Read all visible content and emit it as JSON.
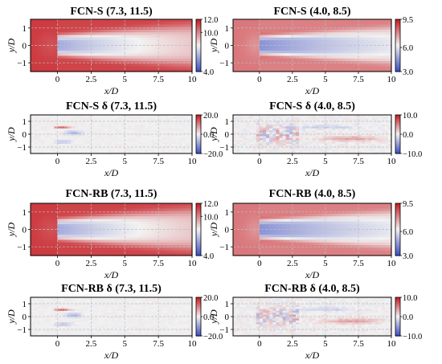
{
  "figure": {
    "colormap": "coolwarm",
    "colors": {
      "blue": "#3b4cc0",
      "white": "#f2f2f2",
      "red": "#c5181f"
    },
    "grid": true
  },
  "chart_data": [
    {
      "type": "heatmap",
      "title": "FCN-S (7.3, 11.5)",
      "field": "wake",
      "case": "A",
      "xlabel": "x/D",
      "ylabel": "y/D",
      "xlim": [
        -2,
        10
      ],
      "ylim": [
        -1.5,
        1.5
      ],
      "xticks": [
        "0",
        "2.5",
        "5",
        "7.5",
        "10"
      ],
      "yticks": [
        "1",
        "0",
        "−1"
      ],
      "colorbar": {
        "min": 4.0,
        "max": 12.0,
        "ticks": [
          "12.0",
          "10.0",
          "4.0"
        ]
      }
    },
    {
      "type": "heatmap",
      "title": "FCN-S (4.0, 8.5)",
      "field": "wake",
      "case": "B",
      "xlabel": "x/D",
      "ylabel": "y/D",
      "xlim": [
        -2,
        10
      ],
      "ylim": [
        -1.5,
        1.5
      ],
      "xticks": [
        "0",
        "2.5",
        "5",
        "7.5",
        "10"
      ],
      "yticks": [
        "1",
        "0",
        "−1"
      ],
      "colorbar": {
        "min": 3.0,
        "max": 9.5,
        "ticks": [
          "9.5",
          "6.0",
          "3.0"
        ]
      }
    },
    {
      "type": "heatmap",
      "title": "FCN-S δ (7.3, 11.5)",
      "field": "error",
      "case": "A",
      "xlabel": "x/D",
      "ylabel": "y/D",
      "xlim": [
        -2,
        10
      ],
      "ylim": [
        -1.5,
        1.5
      ],
      "xticks": [
        "0",
        "2.5",
        "5",
        "7.5",
        "10"
      ],
      "yticks": [
        "1",
        "0",
        "−1"
      ],
      "colorbar": {
        "min": -20.0,
        "max": 20.0,
        "ticks": [
          "20.0",
          "0.0",
          "−20.0"
        ]
      }
    },
    {
      "type": "heatmap",
      "title": "FCN-S δ (4.0, 8.5)",
      "field": "error",
      "case": "B",
      "xlabel": "x/D",
      "ylabel": "y/D",
      "xlim": [
        -2,
        10
      ],
      "ylim": [
        -1.5,
        1.5
      ],
      "xticks": [
        "0",
        "2.5",
        "5",
        "7.5",
        "10"
      ],
      "yticks": [
        "1",
        "0",
        "−1"
      ],
      "colorbar": {
        "min": -10.0,
        "max": 10.0,
        "ticks": [
          "10.0",
          "0.0",
          "−10.0"
        ]
      }
    },
    {
      "type": "heatmap",
      "title": "FCN-RB (7.3, 11.5)",
      "field": "wake",
      "case": "A",
      "xlabel": "x/D",
      "ylabel": "y/D",
      "xlim": [
        -2,
        10
      ],
      "ylim": [
        -1.5,
        1.5
      ],
      "xticks": [
        "0",
        "2.5",
        "5",
        "7.5",
        "10"
      ],
      "yticks": [
        "1",
        "0",
        "−1"
      ],
      "colorbar": {
        "min": 4.0,
        "max": 12.0,
        "ticks": [
          "12.0",
          "10.0",
          "4.0"
        ]
      }
    },
    {
      "type": "heatmap",
      "title": "FCN-RB (4.0, 8.5)",
      "field": "wake",
      "case": "B",
      "xlabel": "x/D",
      "ylabel": "y/D",
      "xlim": [
        -2,
        10
      ],
      "ylim": [
        -1.5,
        1.5
      ],
      "xticks": [
        "0",
        "2.5",
        "5",
        "7.5",
        "10"
      ],
      "yticks": [
        "1",
        "0",
        "−1"
      ],
      "colorbar": {
        "min": 3.0,
        "max": 9.5,
        "ticks": [
          "9.5",
          "6.0",
          "3.0"
        ]
      }
    },
    {
      "type": "heatmap",
      "title": "FCN-RB δ (7.3, 11.5)",
      "field": "error",
      "case": "A",
      "xlabel": "x/D",
      "ylabel": "y/D",
      "xlim": [
        -2,
        10
      ],
      "ylim": [
        -1.5,
        1.5
      ],
      "xticks": [
        "0",
        "2.5",
        "5",
        "7.5",
        "10"
      ],
      "yticks": [
        "1",
        "0",
        "−1"
      ],
      "colorbar": {
        "min": -20.0,
        "max": 20.0,
        "ticks": [
          "20.0",
          "0.0",
          "−20.0"
        ]
      }
    },
    {
      "type": "heatmap",
      "title": "FCN-RB δ (4.0, 8.5)",
      "field": "error",
      "case": "B",
      "xlabel": "x/D",
      "ylabel": "y/D",
      "xlim": [
        -2,
        10
      ],
      "ylim": [
        -1.5,
        1.5
      ],
      "xticks": [
        "0",
        "2.5",
        "5",
        "7.5",
        "10"
      ],
      "yticks": [
        "1",
        "0",
        "−1"
      ],
      "colorbar": {
        "min": -10.0,
        "max": 10.0,
        "ticks": [
          "10.0",
          "0.0",
          "−10.0"
        ]
      }
    }
  ]
}
